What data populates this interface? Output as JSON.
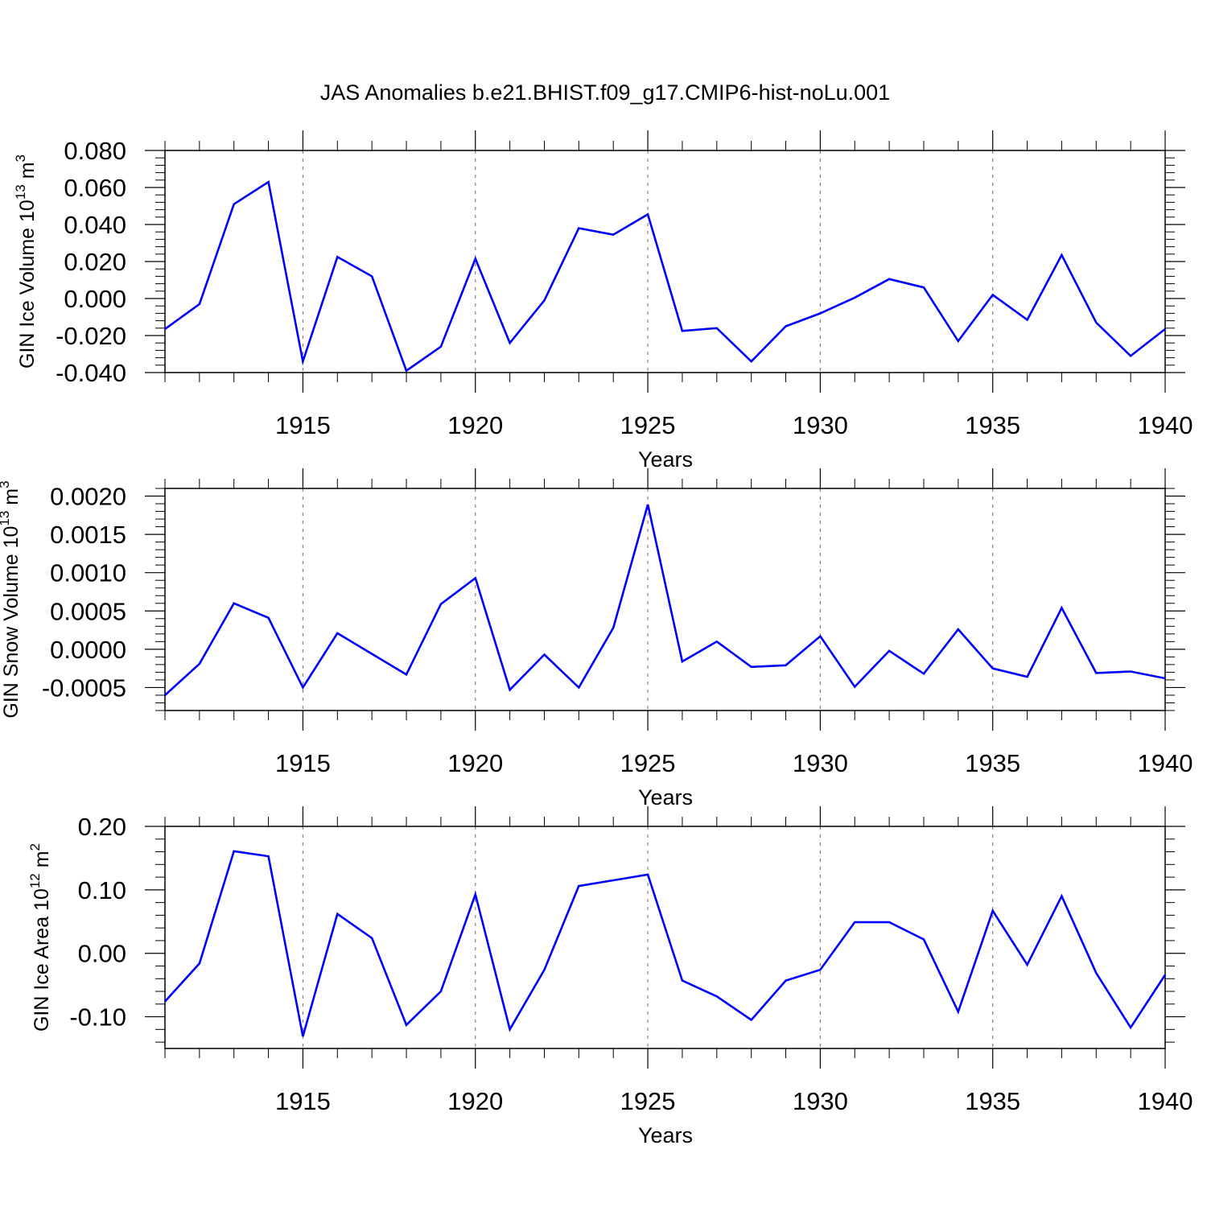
{
  "title": "JAS Anomalies b.e21.BHIST.f09_g17.CMIP6-hist-noLu.001",
  "colors": {
    "line": "#0000ff",
    "axis": "#000000",
    "grid": "#808080"
  },
  "chart_data": [
    {
      "type": "line",
      "ylabel": "GIN Ice Volume 10",
      "ylabel_exp": "13",
      "ylabel_unit": " m",
      "ylabel_unit_exp": "3",
      "xlabel": "Years",
      "xlim": [
        1911,
        1940
      ],
      "ylim": [
        -0.04,
        0.08
      ],
      "yticks": [
        -0.04,
        -0.02,
        0.0,
        0.02,
        0.04,
        0.06,
        0.08
      ],
      "ytick_labels": [
        "-0.040",
        "-0.020",
        "0.000",
        "0.020",
        "0.040",
        "0.060",
        "0.080"
      ],
      "yminor_step": 0.004,
      "xticks": [
        1915,
        1920,
        1925,
        1930,
        1935,
        1940
      ],
      "xtick_labels": [
        "1915",
        "1920",
        "1925",
        "1930",
        "1935",
        "1940"
      ],
      "x": [
        1911,
        1912,
        1913,
        1914,
        1915,
        1916,
        1917,
        1918,
        1919,
        1920,
        1921,
        1922,
        1923,
        1924,
        1925,
        1926,
        1927,
        1928,
        1929,
        1930,
        1931,
        1932,
        1933,
        1934,
        1935,
        1936,
        1937,
        1938,
        1939,
        1940
      ],
      "series": [
        {
          "name": "GIN Ice Volume",
          "values": [
            -0.0165,
            -0.003,
            0.051,
            0.063,
            -0.034,
            0.0225,
            0.012,
            -0.039,
            -0.026,
            0.0215,
            -0.024,
            -0.001,
            0.038,
            0.0345,
            0.0455,
            -0.0175,
            -0.016,
            -0.034,
            -0.015,
            -0.008,
            0.0005,
            0.0105,
            0.006,
            -0.023,
            0.002,
            -0.0115,
            0.0235,
            -0.013,
            -0.031,
            -0.0165
          ]
        }
      ]
    },
    {
      "type": "line",
      "ylabel": "GIN Snow Volume 10",
      "ylabel_exp": "13",
      "ylabel_unit": " m",
      "ylabel_unit_exp": "3",
      "xlabel": "Years",
      "xlim": [
        1911,
        1940
      ],
      "ylim": [
        -0.0008,
        0.0021
      ],
      "yticks": [
        -0.0005,
        0.0,
        0.0005,
        0.001,
        0.0015,
        0.002
      ],
      "ytick_labels": [
        "-0.0005",
        "0.0000",
        "0.0005",
        "0.0010",
        "0.0015",
        "0.0020"
      ],
      "yminor_step": 0.0001,
      "xticks": [
        1915,
        1920,
        1925,
        1930,
        1935,
        1940
      ],
      "xtick_labels": [
        "1915",
        "1920",
        "1925",
        "1930",
        "1935",
        "1940"
      ],
      "x": [
        1911,
        1912,
        1913,
        1914,
        1915,
        1916,
        1917,
        1918,
        1919,
        1920,
        1921,
        1922,
        1923,
        1924,
        1925,
        1926,
        1927,
        1928,
        1929,
        1930,
        1931,
        1932,
        1933,
        1934,
        1935,
        1936,
        1937,
        1938,
        1939,
        1940
      ],
      "series": [
        {
          "name": "GIN Snow Volume",
          "values": [
            -0.0006,
            -0.00019,
            0.0006,
            0.00041,
            -0.0005,
            0.00021,
            -6e-05,
            -0.00033,
            0.00059,
            0.00093,
            -0.00053,
            -7e-05,
            -0.0005,
            0.00028,
            0.00189,
            -0.00016,
            0.0001,
            -0.00023,
            -0.00021,
            0.00017,
            -0.00049,
            -2e-05,
            -0.00032,
            0.00026,
            -0.00025,
            -0.00036,
            0.00054,
            -0.00031,
            -0.00029,
            -0.00038
          ]
        }
      ]
    },
    {
      "type": "line",
      "ylabel": "GIN Ice Area 10",
      "ylabel_exp": "12",
      "ylabel_unit": " m",
      "ylabel_unit_exp": "2",
      "xlabel": "Years",
      "xlim": [
        1911,
        1940
      ],
      "ylim": [
        -0.15,
        0.2
      ],
      "yticks": [
        -0.1,
        0.0,
        0.1,
        0.2
      ],
      "ytick_labels": [
        "-0.10",
        "0.00",
        "0.10",
        "0.20"
      ],
      "yminor_step": 0.02,
      "xticks": [
        1915,
        1920,
        1925,
        1930,
        1935,
        1940
      ],
      "xtick_labels": [
        "1915",
        "1920",
        "1925",
        "1930",
        "1935",
        "1940"
      ],
      "x": [
        1911,
        1912,
        1913,
        1914,
        1915,
        1916,
        1917,
        1918,
        1919,
        1920,
        1921,
        1922,
        1923,
        1924,
        1925,
        1926,
        1927,
        1928,
        1929,
        1930,
        1931,
        1932,
        1933,
        1934,
        1935,
        1936,
        1937,
        1938,
        1939,
        1940
      ],
      "series": [
        {
          "name": "GIN Ice Area",
          "values": [
            -0.076,
            -0.016,
            0.161,
            0.153,
            -0.131,
            0.062,
            0.024,
            -0.113,
            -0.06,
            0.093,
            -0.12,
            -0.026,
            0.106,
            0.115,
            0.124,
            -0.043,
            -0.068,
            -0.105,
            -0.043,
            -0.026,
            0.049,
            0.049,
            0.022,
            -0.092,
            0.067,
            -0.018,
            0.09,
            -0.031,
            -0.117,
            -0.034
          ]
        }
      ]
    }
  ]
}
